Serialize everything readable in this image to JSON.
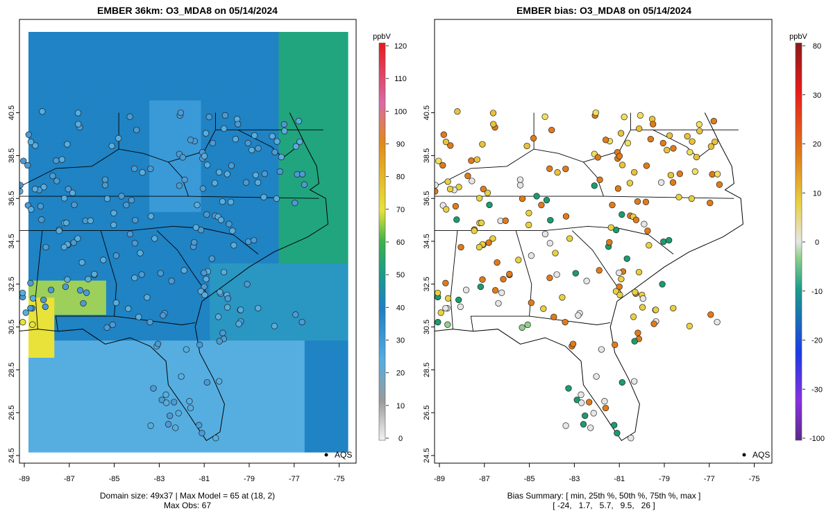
{
  "left_panel": {
    "title": "EMBER 36km: O3_MDA8 on 05/14/2024",
    "footer_line1": "Domain size: 49x37 | Max Model = 65 at (18, 2)",
    "footer_line2": "Max Obs: 67",
    "legend_label": "AQS",
    "colorbar_unit": "ppbV",
    "colorbar_ticks": [
      "0",
      "10",
      "20",
      "30",
      "40",
      "50",
      "60",
      "70",
      "80",
      "90",
      "100",
      "110",
      "120"
    ],
    "y_ticks": [
      "24.5",
      "26.5",
      "28.5",
      "30.5",
      "32.5",
      "34.5",
      "36.5",
      "38.5",
      "40.5"
    ],
    "x_ticks": [
      "-89",
      "-87",
      "-85",
      "-83",
      "-81",
      "-79",
      "-77",
      "-75"
    ]
  },
  "right_panel": {
    "title": "EMBER bias: O3_MDA8 on 05/14/2024",
    "footer_line1": "Bias Summary: [ min, 25th %, 50th %, 75th %, max ]",
    "footer_line2": "[ -24,   1.7,   5.7,   9.5,   26 ]",
    "legend_label": "AQS",
    "colorbar_unit": "ppbV",
    "colorbar_ticks": [
      "-100",
      "-30",
      "-20",
      "-10",
      "0",
      "10",
      "20",
      "30",
      "80"
    ],
    "y_ticks": [
      "24.5",
      "26.5",
      "28.5",
      "30.5",
      "32.5",
      "34.5",
      "36.5",
      "38.5",
      "40.5"
    ],
    "x_ticks": [
      "-89",
      "-87",
      "-85",
      "-83",
      "-81",
      "-79",
      "-77",
      "-75"
    ]
  },
  "colors": {
    "ocean_low": "#56aee0",
    "land_mid": "#1f83c4",
    "high_green": "#21a57e",
    "peak_yellow": "#e8e23a",
    "bias_high": "#e07b1a",
    "bias_low": "#1a9c6e"
  }
}
